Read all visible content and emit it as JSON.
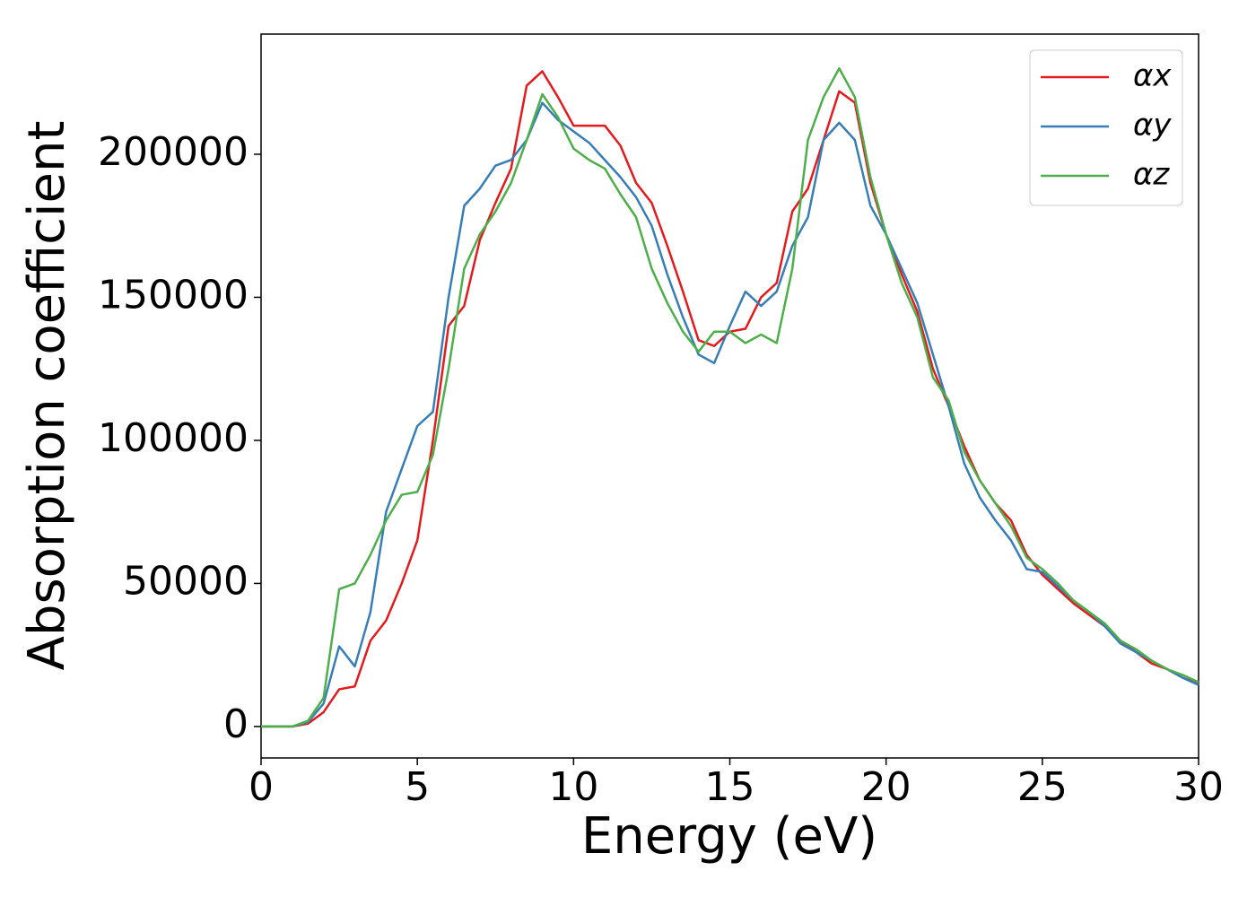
{
  "chart_data": {
    "type": "line",
    "xlabel": "Energy (eV)",
    "ylabel": "Absorption coefficient",
    "x": [
      0,
      0.5,
      1,
      1.5,
      2,
      2.5,
      3,
      3.5,
      4,
      4.5,
      5,
      5.5,
      6,
      6.5,
      7,
      7.5,
      8,
      8.5,
      9,
      9.5,
      10,
      10.5,
      11,
      11.5,
      12,
      12.5,
      13,
      13.5,
      14,
      14.5,
      15,
      15.5,
      16,
      16.5,
      17,
      17.5,
      18,
      18.5,
      19,
      19.5,
      20,
      20.5,
      21,
      21.5,
      22,
      22.5,
      23,
      23.5,
      24,
      24.5,
      25,
      25.5,
      26,
      26.5,
      27,
      27.5,
      28,
      28.5,
      29,
      29.5,
      30
    ],
    "series": [
      {
        "name": "αx",
        "color": "#e41a1c",
        "values": [
          0,
          0,
          0,
          1000,
          5000,
          13000,
          14000,
          30000,
          37000,
          50000,
          65000,
          100000,
          140000,
          147000,
          170000,
          183000,
          195000,
          224000,
          229000,
          220000,
          210000,
          210000,
          210000,
          203000,
          190000,
          183000,
          168000,
          152000,
          135000,
          133000,
          138000,
          139000,
          150000,
          155000,
          180000,
          188000,
          205000,
          222000,
          218000,
          190000,
          172000,
          158000,
          145000,
          125000,
          112000,
          98000,
          86000,
          78000,
          72000,
          60000,
          53000,
          48000,
          43000,
          39000,
          35000,
          30000,
          26000,
          22000,
          20000,
          17000,
          15000
        ]
      },
      {
        "name": "αy",
        "color": "#377eb8",
        "values": [
          0,
          0,
          0,
          1500,
          8000,
          28000,
          21000,
          40000,
          75000,
          90000,
          105000,
          110000,
          150000,
          182000,
          188000,
          196000,
          198000,
          205000,
          218000,
          212000,
          208000,
          204000,
          198000,
          192000,
          185000,
          175000,
          158000,
          143000,
          130000,
          127000,
          140000,
          152000,
          147000,
          152000,
          168000,
          178000,
          205000,
          211000,
          205000,
          182000,
          172000,
          160000,
          148000,
          130000,
          112000,
          92000,
          80000,
          72000,
          65000,
          55000,
          54000,
          49000,
          44000,
          40000,
          35000,
          29000,
          26000,
          23000,
          20000,
          17000,
          14500
        ]
      },
      {
        "name": "αz",
        "color": "#4daf4a",
        "values": [
          0,
          0,
          0,
          2000,
          10000,
          48000,
          50000,
          60000,
          72000,
          81000,
          82000,
          95000,
          125000,
          160000,
          172000,
          180000,
          190000,
          205000,
          221000,
          213000,
          202000,
          198000,
          195000,
          186000,
          178000,
          160000,
          148000,
          138000,
          131000,
          138000,
          138000,
          134000,
          137000,
          134000,
          160000,
          205000,
          220000,
          230000,
          220000,
          192000,
          172000,
          155000,
          143000,
          122000,
          114000,
          96000,
          86000,
          78000,
          70000,
          59000,
          55000,
          50000,
          44000,
          40000,
          36000,
          30000,
          27000,
          23000,
          20000,
          18000,
          15500
        ]
      }
    ],
    "xlim": [
      0,
      30
    ],
    "ylim": [
      -11000,
      242000
    ],
    "xticks": [
      0,
      5,
      10,
      15,
      20,
      25,
      30
    ],
    "yticks": [
      0,
      50000,
      100000,
      150000,
      200000
    ],
    "legend": "upper right"
  }
}
